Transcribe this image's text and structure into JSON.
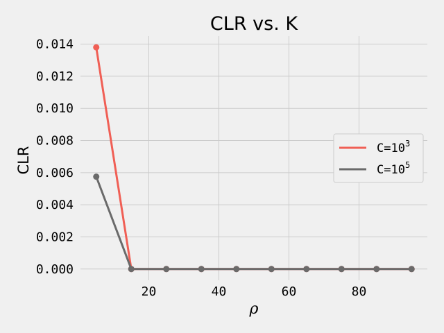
{
  "chart_data": {
    "type": "line",
    "title": "CLR vs.  K",
    "xlabel": "ρ",
    "ylabel": "CLR",
    "x": [
      5,
      15,
      25,
      35,
      45,
      55,
      65,
      75,
      85,
      95
    ],
    "xticks": [
      "20",
      "40",
      "60",
      "80"
    ],
    "xtick_values": [
      20,
      40,
      60,
      80
    ],
    "yticks": [
      "0.000",
      "0.002",
      "0.004",
      "0.006",
      "0.008",
      "0.010",
      "0.012",
      "0.014"
    ],
    "ytick_values": [
      0,
      0.002,
      0.004,
      0.006,
      0.008,
      0.01,
      0.012,
      0.014
    ],
    "xlim": [
      0.5,
      99.5
    ],
    "ylim": [
      -0.0007,
      0.0145
    ],
    "grid": true,
    "legend_position": "center-right",
    "series": [
      {
        "name": "C=10",
        "name_exp": "3",
        "color": "#f05f55",
        "values": [
          0.0138,
          0.0,
          0.0,
          0.0,
          0.0,
          0.0,
          0.0,
          0.0,
          0.0,
          0.0
        ]
      },
      {
        "name": "C=10",
        "name_exp": "5",
        "color": "#6a6a6a",
        "values": [
          0.00575,
          0.0,
          0.0,
          0.0,
          0.0,
          0.0,
          0.0,
          0.0,
          0.0,
          0.0
        ]
      }
    ]
  }
}
